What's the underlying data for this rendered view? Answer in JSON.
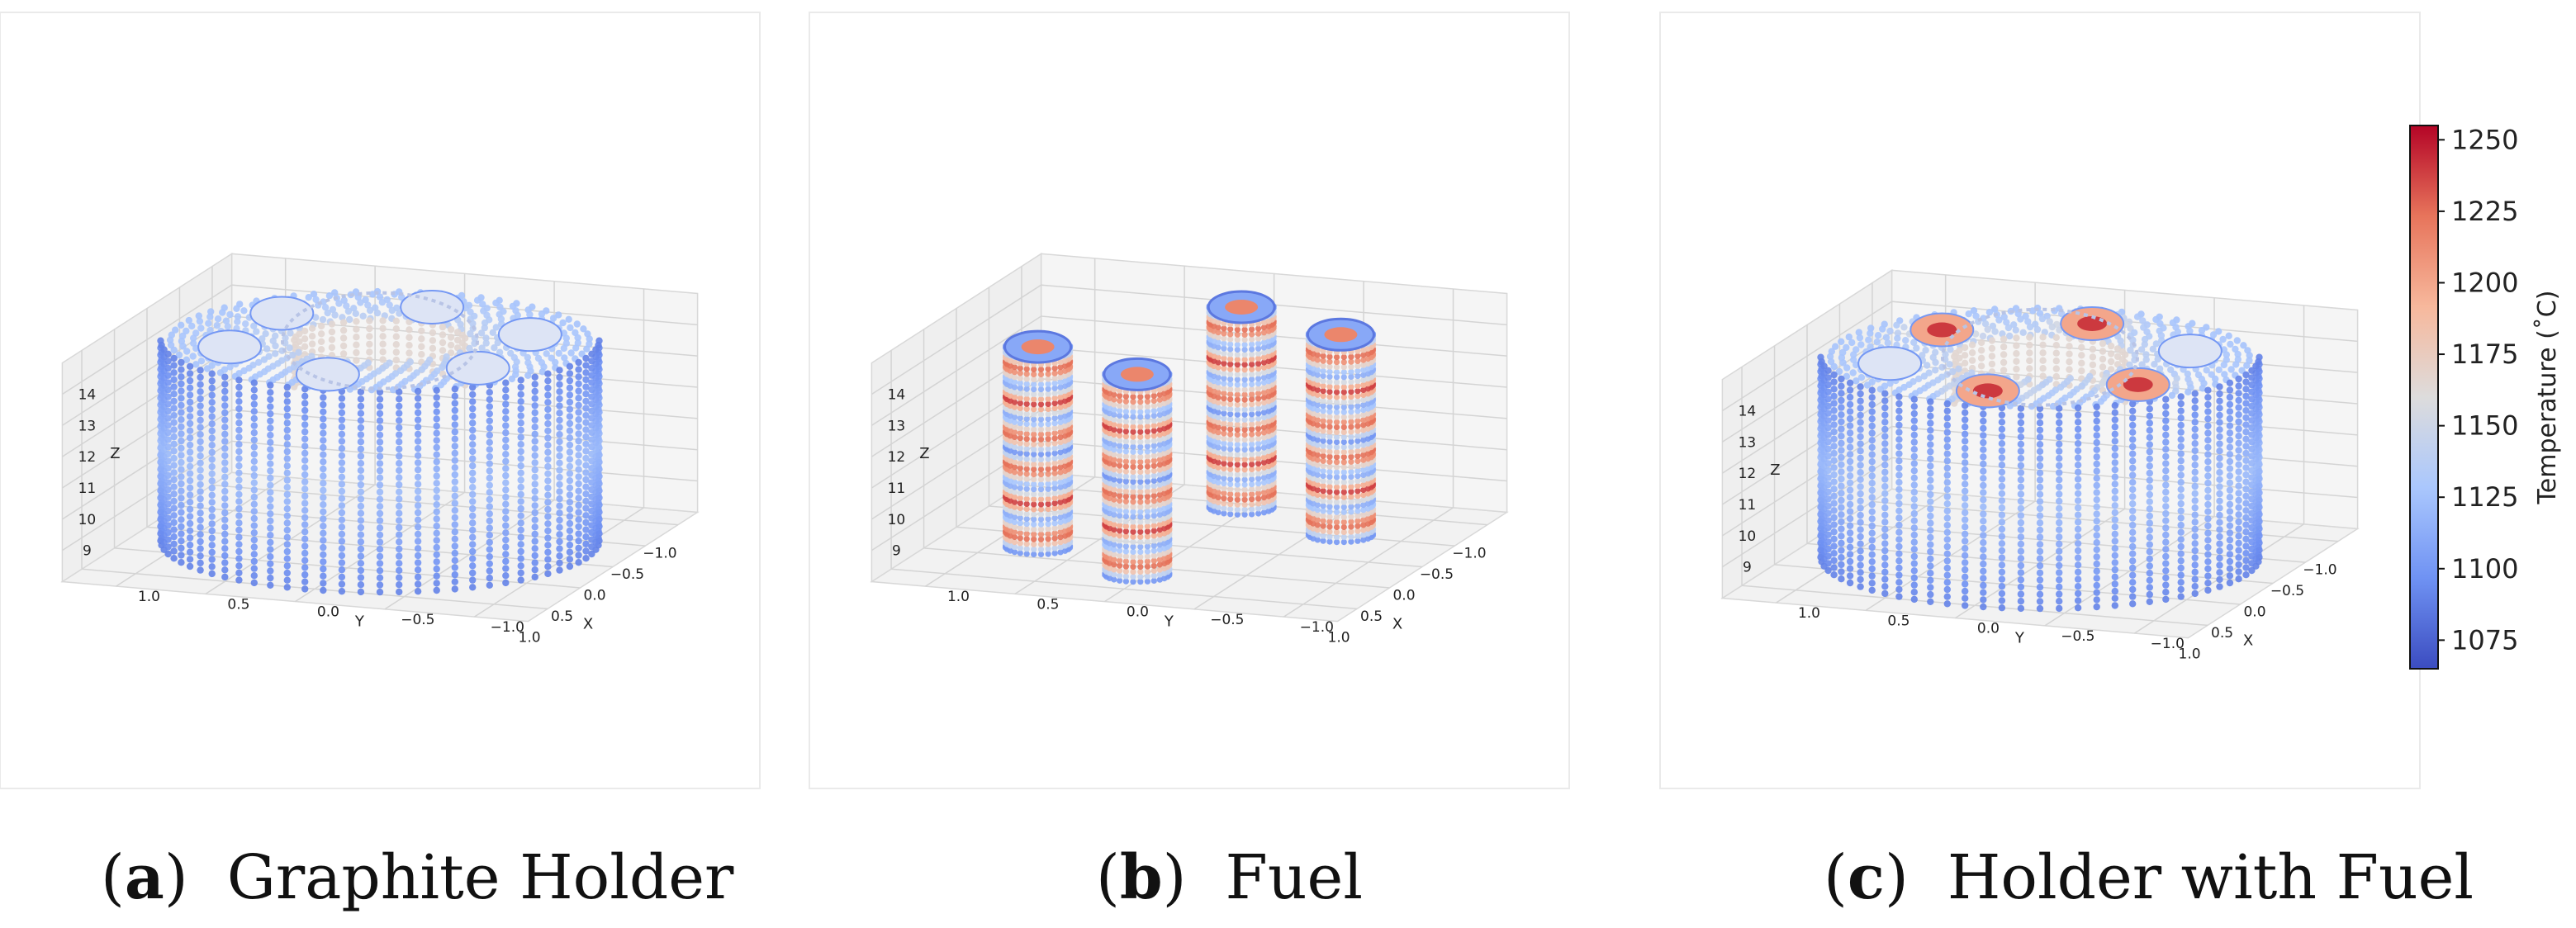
{
  "figure": {
    "panels": [
      {
        "id": "a",
        "letter": "a",
        "caption": "Graphite Holder"
      },
      {
        "id": "b",
        "letter": "b",
        "caption": "Fuel"
      },
      {
        "id": "c",
        "letter": "c",
        "caption": "Holder with Fuel"
      }
    ]
  },
  "chart_data": [
    {
      "type": "scatter3d",
      "title": "Graphite Holder",
      "xlabel": "X",
      "ylabel": "Y",
      "zlabel": "Z",
      "x_ticks": [
        "−1.0",
        "−0.5",
        "0.0",
        "0.5",
        "1.0"
      ],
      "y_ticks": [
        "−1.0",
        "−0.5",
        "0.0",
        "0.5",
        "1.0"
      ],
      "z_ticks": [
        "9",
        "10",
        "11",
        "12",
        "13",
        "14"
      ],
      "xlim": [
        -1.3,
        1.3
      ],
      "ylim": [
        -1.3,
        1.3
      ],
      "zlim": [
        8,
        15
      ],
      "geometry": {
        "outer_radius": 1.15,
        "inner_hole_radius": 0.45,
        "fuel_hole_radius": 0.17,
        "hole_ring_radius": 0.8,
        "hole_count": 6,
        "z_range": [
          8.2,
          14.6
        ]
      },
      "temperature_range": [
        1080,
        1175
      ]
    },
    {
      "type": "scatter3d",
      "title": "Fuel",
      "xlabel": "X",
      "ylabel": "Y",
      "zlabel": "Z",
      "x_ticks": [
        "−1.0",
        "−0.5",
        "0.0",
        "0.5",
        "1.0"
      ],
      "y_ticks": [
        "−1.0",
        "−0.5",
        "0.0",
        "0.5",
        "1.0"
      ],
      "z_ticks": [
        "9",
        "10",
        "11",
        "12",
        "13",
        "14"
      ],
      "xlim": [
        -1.3,
        1.3
      ],
      "ylim": [
        -1.3,
        1.3
      ],
      "zlim": [
        8,
        15
      ],
      "fuel_rods": [
        {
          "x": -0.8,
          "y": 0.0
        },
        {
          "x": -0.4,
          "y": -0.7
        },
        {
          "x": 0.4,
          "y": 0.7
        },
        {
          "x": 0.8,
          "y": 0.0
        }
      ],
      "rod_radius": 0.17,
      "rod_inner_radius": 0.07,
      "rod_segments": 6,
      "temperature_range": [
        1090,
        1235
      ]
    },
    {
      "type": "scatter3d",
      "title": "Holder with Fuel",
      "xlabel": "X",
      "ylabel": "Y",
      "zlabel": "Z",
      "x_ticks": [
        "−1.0",
        "−0.5",
        "0.0",
        "0.5",
        "1.0"
      ],
      "y_ticks": [
        "−1.0",
        "−0.5",
        "0.0",
        "0.5",
        "1.0"
      ],
      "z_ticks": [
        "9",
        "10",
        "11",
        "12",
        "13",
        "14"
      ],
      "xlim": [
        -1.3,
        1.3
      ],
      "ylim": [
        -1.3,
        1.3
      ],
      "zlim": [
        8,
        15
      ],
      "fuel_positions": [
        0,
        2,
        3,
        5
      ],
      "temperature_range": [
        1080,
        1235
      ]
    },
    {
      "type": "colorbar",
      "label": "Temperature (˚C)",
      "min": 1065,
      "max": 1255,
      "ticks": [
        "1075",
        "1100",
        "1125",
        "1150",
        "1175",
        "1200",
        "1225",
        "1250"
      ],
      "tick_values": [
        1075,
        1100,
        1125,
        1150,
        1175,
        1200,
        1225,
        1250
      ],
      "colormap": "coolwarm",
      "colormap_stops": [
        "#3b4cc0",
        "#6f92f3",
        "#aac7fd",
        "#dddcdc",
        "#f7b89c",
        "#e7745b",
        "#b40426"
      ]
    }
  ]
}
